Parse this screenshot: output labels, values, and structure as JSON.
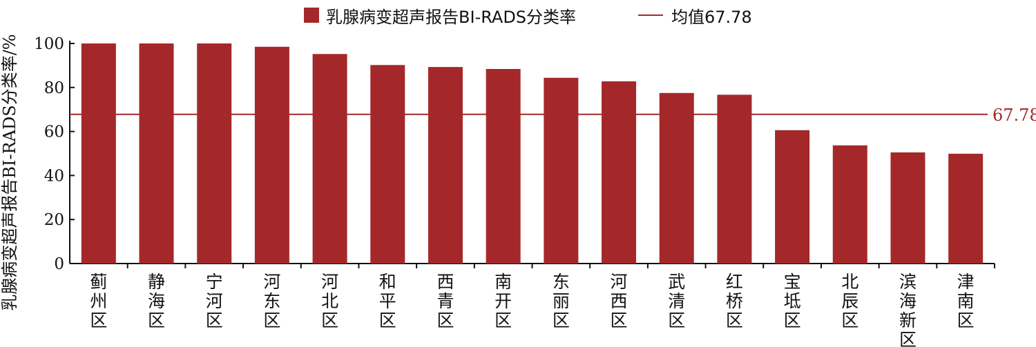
{
  "colors": {
    "bar": "#a4282a",
    "mean_line": "#a4282a",
    "axis": "#111111"
  },
  "chart_data": {
    "type": "bar",
    "title": "",
    "xlabel": "",
    "ylabel": "乳腺病变超声报告BI-RADS分类率/%",
    "ylim": [
      0,
      100
    ],
    "yticks": [
      0,
      20,
      40,
      60,
      80,
      100
    ],
    "categories": [
      "蓟州区",
      "静海区",
      "宁河区",
      "河东区",
      "河北区",
      "和平区",
      "西青区",
      "南开区",
      "东丽区",
      "河西区",
      "武清区",
      "红桥区",
      "宝坻区",
      "北辰区",
      "滨海新区",
      "津南区"
    ],
    "series": [
      {
        "name": "乳腺病变超声报告BI-RADS分类率",
        "values": [
          100,
          100,
          100,
          98.5,
          95.2,
          90.2,
          89.3,
          88.4,
          84.4,
          82.8,
          77.5,
          76.7,
          60.6,
          53.7,
          50.5,
          49.9
        ]
      }
    ],
    "mean": {
      "name": "均值67.78",
      "value": 67.78,
      "label": "67.78"
    },
    "grid": false,
    "legend_position": "top-center"
  }
}
